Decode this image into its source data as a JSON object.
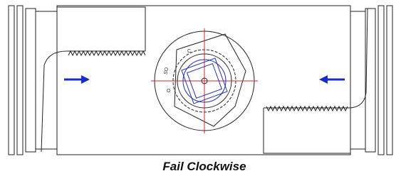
{
  "caption": "Fail Clockwise",
  "pinion_labels": [
    "C",
    "SO",
    "O"
  ]
}
